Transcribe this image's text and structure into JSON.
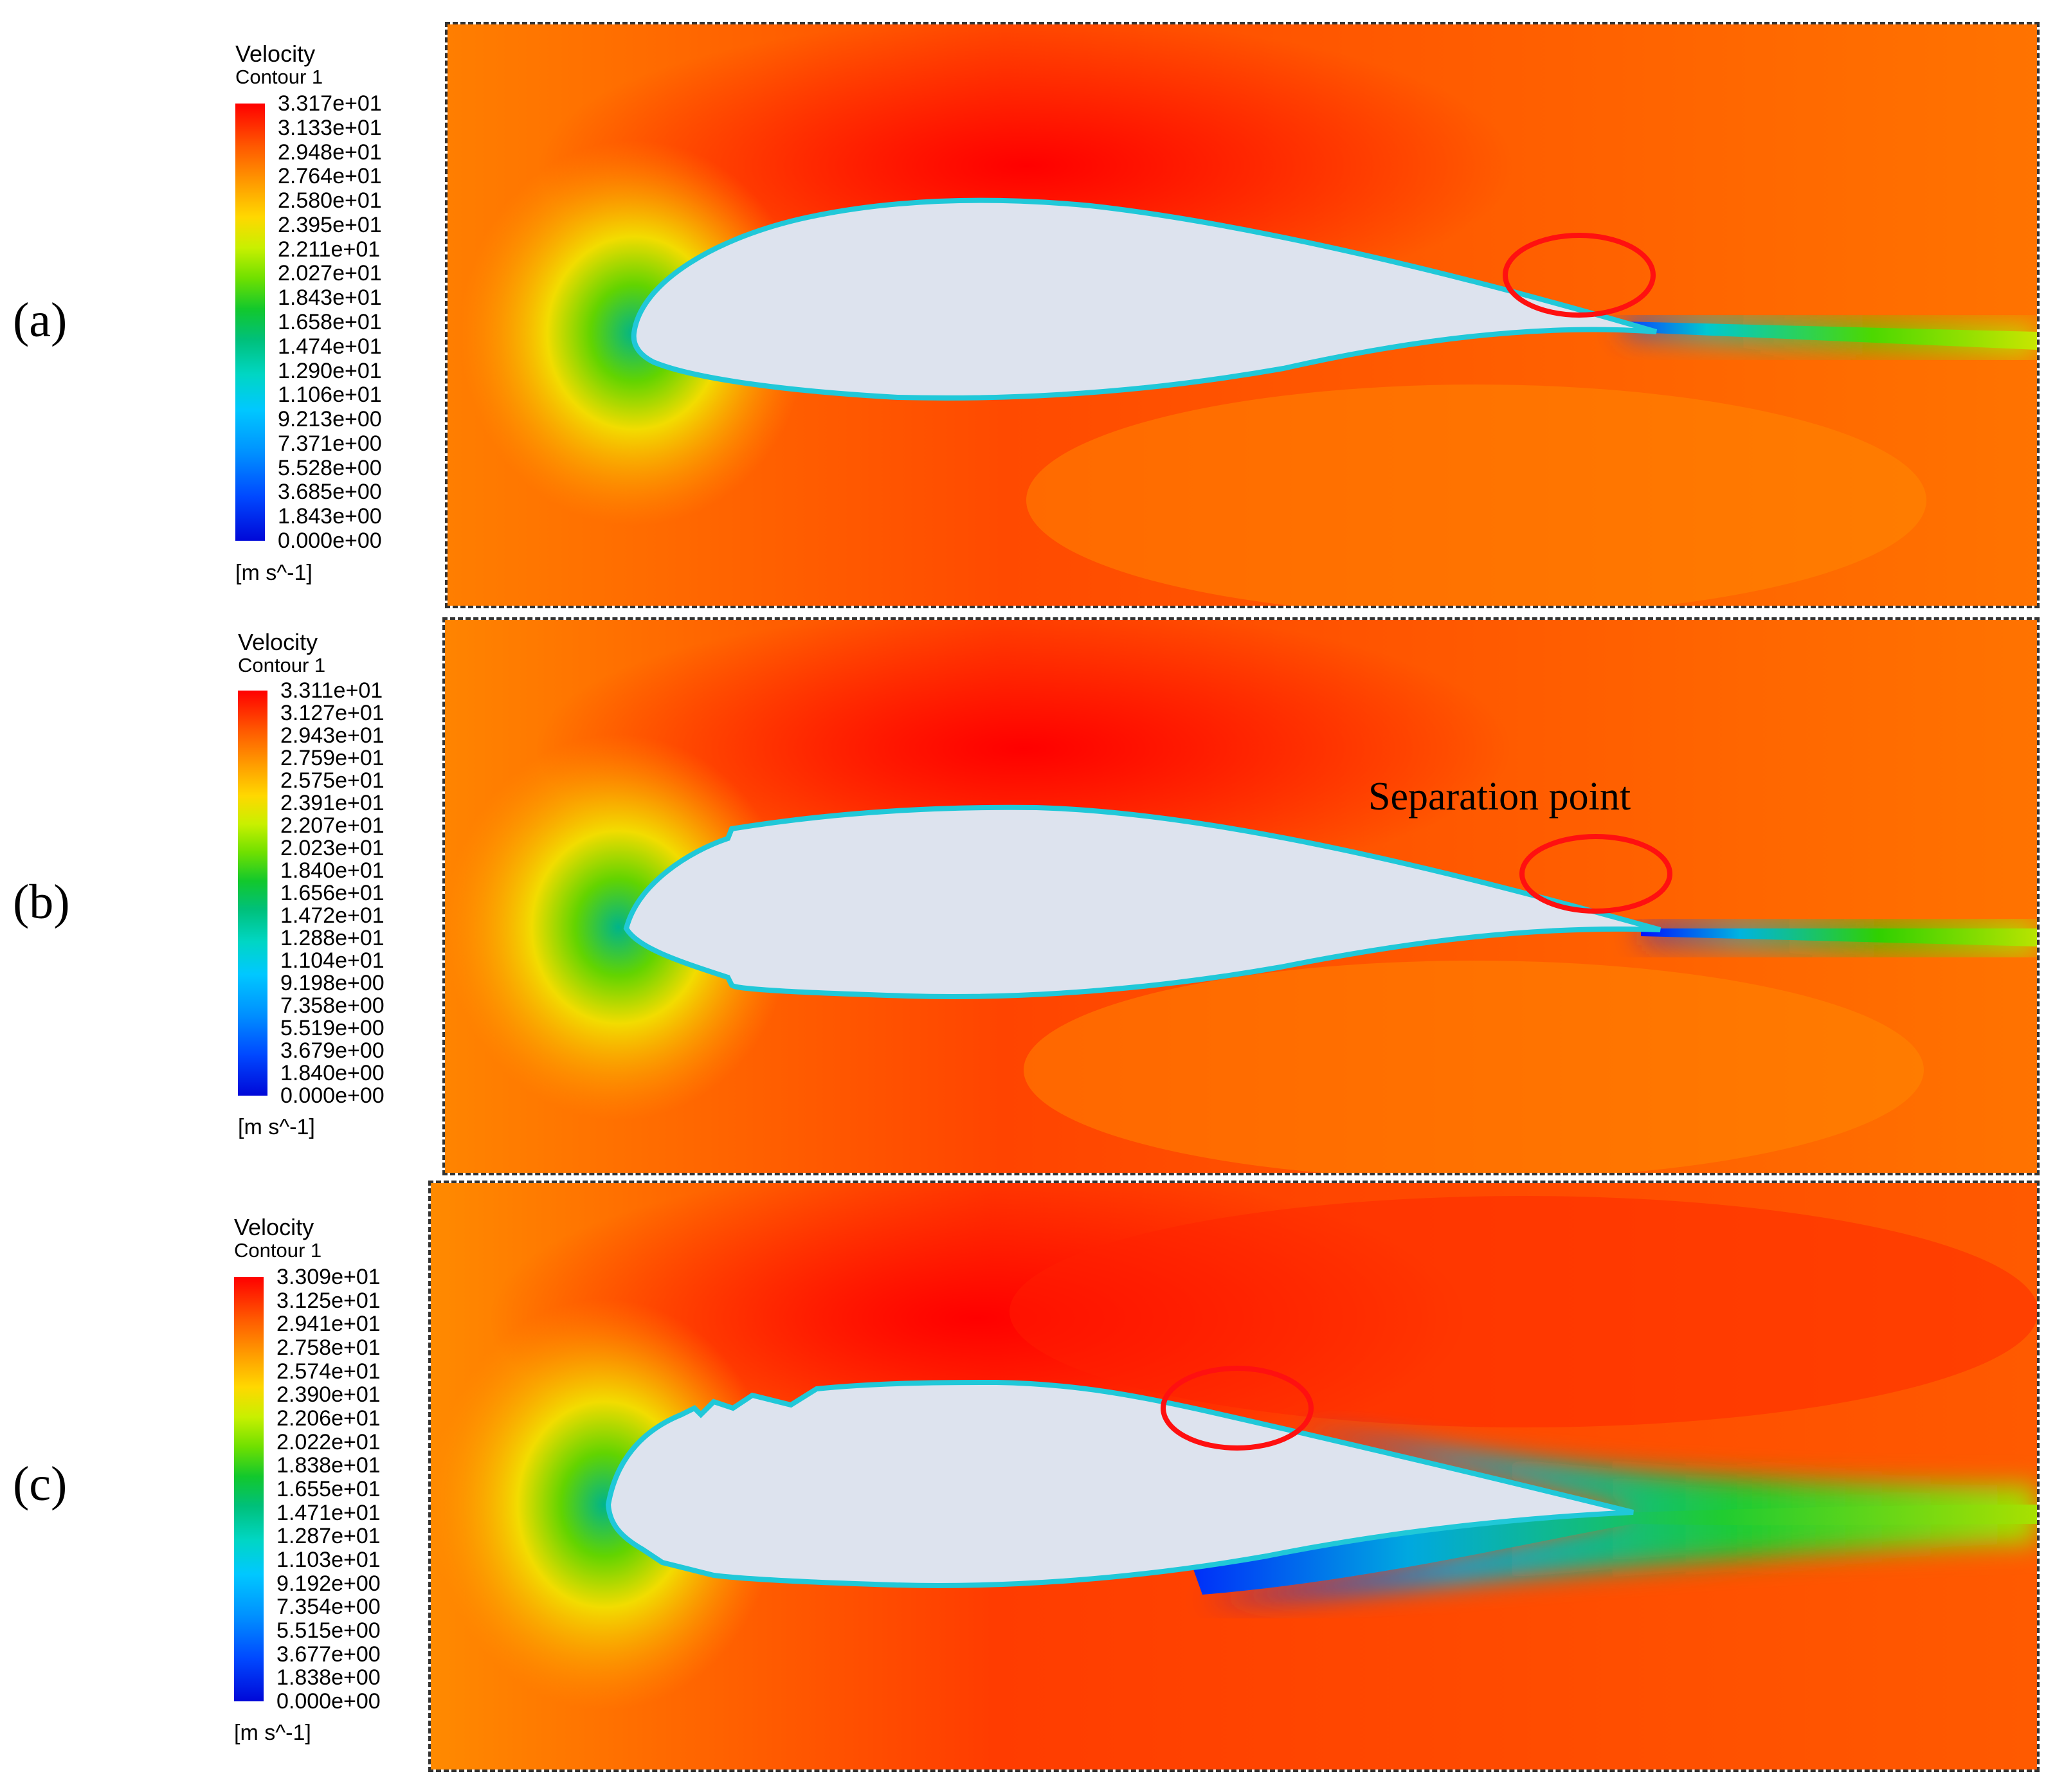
{
  "panels": [
    {
      "label": "(a)",
      "legend": {
        "title": "Velocity",
        "subtitle": "Contour 1",
        "ticks": [
          "3.317e+01",
          "3.133e+01",
          "2.948e+01",
          "2.764e+01",
          "2.580e+01",
          "2.395e+01",
          "2.211e+01",
          "2.027e+01",
          "1.843e+01",
          "1.658e+01",
          "1.474e+01",
          "1.290e+01",
          "1.106e+01",
          "9.213e+00",
          "7.371e+00",
          "5.528e+00",
          "3.685e+00",
          "1.843e+00",
          "0.000e+00"
        ],
        "unit": "[m s^-1]"
      },
      "annotation": ""
    },
    {
      "label": "(b)",
      "legend": {
        "title": "Velocity",
        "subtitle": "Contour 1",
        "ticks": [
          "3.311e+01",
          "3.127e+01",
          "2.943e+01",
          "2.759e+01",
          "2.575e+01",
          "2.391e+01",
          "2.207e+01",
          "2.023e+01",
          "1.840e+01",
          "1.656e+01",
          "1.472e+01",
          "1.288e+01",
          "1.104e+01",
          "9.198e+00",
          "7.358e+00",
          "5.519e+00",
          "3.679e+00",
          "1.840e+00",
          "0.000e+00"
        ],
        "unit": "[m s^-1]"
      },
      "annotation": "Separation point"
    },
    {
      "label": "(c)",
      "legend": {
        "title": "Velocity",
        "subtitle": "Contour 1",
        "ticks": [
          "3.309e+01",
          "3.125e+01",
          "2.941e+01",
          "2.758e+01",
          "2.574e+01",
          "2.390e+01",
          "2.206e+01",
          "2.022e+01",
          "1.838e+01",
          "1.655e+01",
          "1.471e+01",
          "1.287e+01",
          "1.103e+01",
          "9.192e+00",
          "7.354e+00",
          "5.515e+00",
          "3.677e+00",
          "1.838e+00",
          "0.000e+00"
        ],
        "unit": "[m s^-1]"
      },
      "annotation": ""
    }
  ],
  "colors": {
    "freestream": "#ff6a00",
    "max": "#ff0000",
    "airfoil": "#dde3ee",
    "marker": "#ff1010"
  }
}
